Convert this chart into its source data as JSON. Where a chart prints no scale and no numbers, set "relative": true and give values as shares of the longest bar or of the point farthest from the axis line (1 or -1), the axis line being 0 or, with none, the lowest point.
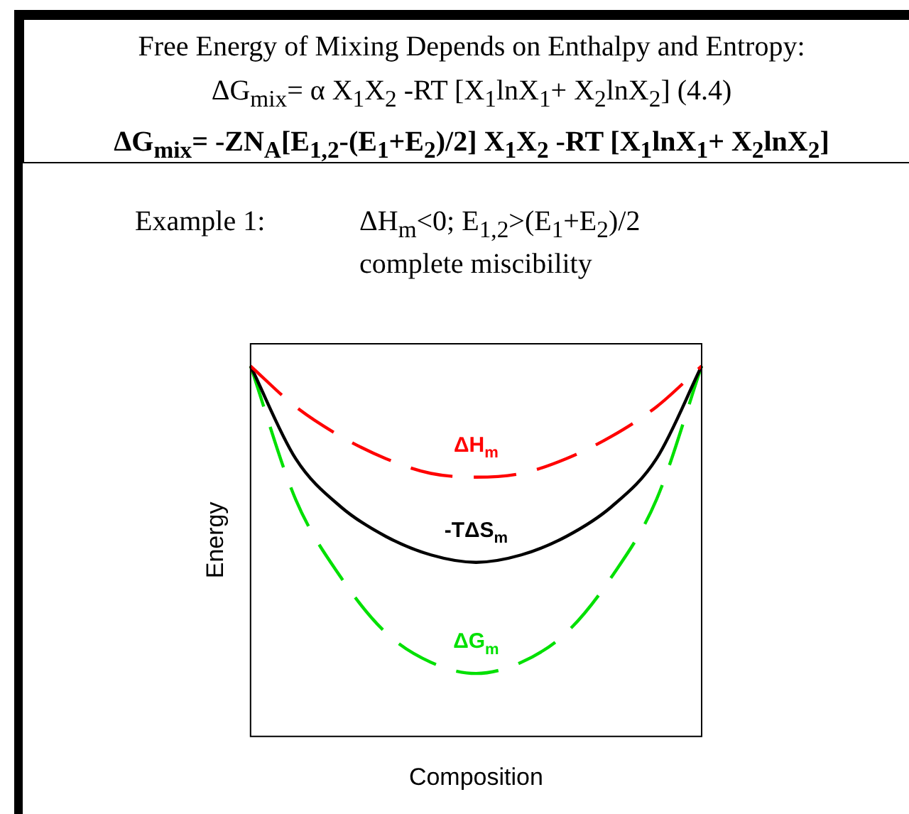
{
  "chart_data": {
    "type": "line",
    "title": "Free Energy of Mixing Depends on Enthalpy and Entropy:",
    "subtitle": "ΔG$_{mix}$= α X$_{1}$X$_{2}$ -RT [X$_{1}$lnX$_{1}$+ X$_{2}$lnX$_{2}$]  (4.4)",
    "annotations": [
      "ΔG$_{mix}$= -ZN$_{A}$[E$_{1,2}$-(E$_{1}$+E$_{2}$)/2] X$_{1}$X$_{2}$ -RT [X$_{1}$lnX$_{1}$+ X$_{2}$lnX$_{2}$]",
      "Example 1:",
      "ΔH$_{m}$<0; E$_{1,2}$>(E$_{1}$+E$_{2}$)/2",
      "complete miscibility"
    ],
    "xlabel": "Composition",
    "ylabel": "Energy",
    "relative": true,
    "grid": false,
    "legend": false,
    "marker": "none",
    "categories": [
      null,
      null,
      null,
      null,
      null,
      null,
      null,
      null,
      null,
      null,
      null
    ],
    "series": [
      {
        "name": "ΔH$_{m}$",
        "color": "#ff0000",
        "line_style": "dashed",
        "values": [
          1,
          0.89,
          0.81,
          0.75,
          0.71,
          0.7,
          0.71,
          0.75,
          0.81,
          0.89,
          1
        ]
      },
      {
        "name": "-TΔS$_{m}$",
        "color": "#000000",
        "line_style": "solid",
        "values": [
          1,
          0.75,
          0.62,
          0.54,
          0.49,
          0.47,
          0.49,
          0.54,
          0.62,
          0.75,
          1
        ]
      },
      {
        "name": "ΔG$_{m}$",
        "color": "#00e000",
        "line_style": "dashed",
        "values": [
          1,
          0.64,
          0.43,
          0.28,
          0.2,
          0.17,
          0.2,
          0.28,
          0.43,
          0.64,
          1
        ]
      }
    ]
  }
}
